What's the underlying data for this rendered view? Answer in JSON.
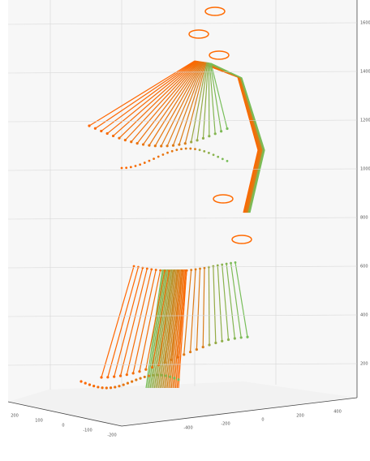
{
  "figure": {
    "z_ticks": [
      "1600",
      "1400",
      "1200",
      "1000",
      "800",
      "600",
      "400",
      "200"
    ],
    "y_ticks": [
      "200",
      "100",
      "0",
      "-100",
      "-200"
    ],
    "x_ticks": [
      "-400",
      "-200",
      "0",
      "200",
      "400"
    ]
  }
}
